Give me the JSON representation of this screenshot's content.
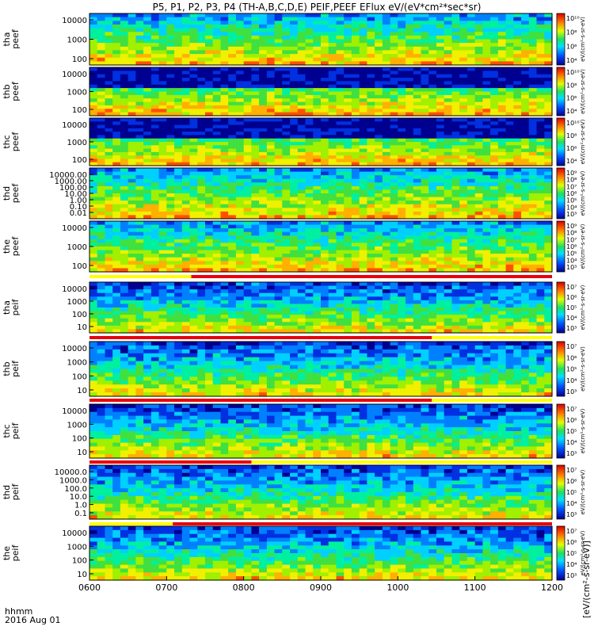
{
  "title": "P5, P1, P2, P3, P4 (TH-A,B,C,D,E) PEIF,PEEF EFlux eV/(eV*cm²*sec*sr)",
  "x_caption": [
    "hhmm",
    "2016 Aug 01"
  ],
  "colorbar_label": "[eV/(cm²-s-sr-eV)]",
  "colors": {
    "background": "#ffffff",
    "axis": "#000000",
    "flag_red": "#e8000b",
    "flag_yellow": "#ffff00",
    "trace": "#000000"
  },
  "chart_data": {
    "type": "heatmap",
    "x_ticks": [
      "0600",
      "0700",
      "0800",
      "0900",
      "1000",
      "1100",
      "1200"
    ],
    "x_range": [
      "06:00",
      "12:00"
    ],
    "colormap": "rainbow",
    "panels": [
      {
        "id": "tha-peef",
        "label": [
          "tha",
          "peef"
        ],
        "y_scale": "log",
        "y_ticks": [
          "10000",
          "1000",
          "100"
        ],
        "cbar_ticks": [
          "10¹⁰",
          "10⁸",
          "10⁶",
          "10⁴"
        ],
        "cbar_label": "eV/(cm²-s-sr-eV)"
      },
      {
        "id": "thb-peef",
        "label": [
          "thb",
          "peef"
        ],
        "y_scale": "log",
        "y_ticks": [
          "10000",
          "1000",
          "100"
        ],
        "cbar_ticks": [
          "10¹⁰",
          "10⁸",
          "10⁶",
          "10⁴"
        ],
        "cbar_label": "eV/(cm²-s-sr-eV)"
      },
      {
        "id": "thc-peef",
        "label": [
          "thc",
          "peef"
        ],
        "y_scale": "log",
        "y_ticks": [
          "10000",
          "1000",
          "100"
        ],
        "cbar_ticks": [
          "10¹⁰",
          "10⁸",
          "10⁶",
          "10⁴"
        ],
        "cbar_label": "eV/(cm²-s-sr-eV)"
      },
      {
        "id": "thd-peef",
        "label": [
          "thd",
          "peef"
        ],
        "y_scale": "log",
        "y_ticks": [
          "10000.00",
          "1000.00",
          "100.00",
          "10.00",
          "1.00",
          "0.10",
          "0.01"
        ],
        "cbar_ticks": [
          "10⁹",
          "10⁸",
          "10⁷",
          "10⁶",
          "10⁵",
          "10⁴",
          "10³"
        ],
        "cbar_label": "eV/(cm²-s-sr-eV)"
      },
      {
        "id": "the-peef",
        "label": [
          "the",
          "peef"
        ],
        "y_scale": "log",
        "y_ticks": [
          "10000",
          "1000",
          "100"
        ],
        "cbar_ticks": [
          "10⁹",
          "10⁸",
          "10⁷",
          "10⁶",
          "10⁵",
          "10⁴",
          "10³"
        ],
        "cbar_label": "eV/(cm²-s-sr-eV)"
      },
      {
        "id": "tha-peif",
        "label": [
          "tha",
          "peif"
        ],
        "y_scale": "log",
        "y_ticks": [
          "10000",
          "1000",
          "100",
          "10"
        ],
        "cbar_ticks": [
          "10⁷",
          "10⁶",
          "10⁵",
          "10⁴",
          "10³"
        ],
        "cbar_label": "eV/(cm²-s-sr-eV)"
      },
      {
        "id": "thb-peif",
        "label": [
          "thb",
          "peif"
        ],
        "y_scale": "log",
        "y_ticks": [
          "10000",
          "1000",
          "100",
          "10"
        ],
        "cbar_ticks": [
          "10⁷",
          "10⁶",
          "10⁵",
          "10⁴",
          "10³"
        ],
        "cbar_label": "eV/(cm²-s-sr-eV)"
      },
      {
        "id": "thc-peif",
        "label": [
          "thc",
          "peif"
        ],
        "y_scale": "log",
        "y_ticks": [
          "10000",
          "1000",
          "100",
          "10"
        ],
        "cbar_ticks": [
          "10⁷",
          "10⁶",
          "10⁵",
          "10⁴",
          "10³"
        ],
        "cbar_label": "eV/(cm²-s-sr-eV)"
      },
      {
        "id": "thd-peif",
        "label": [
          "thd",
          "peif"
        ],
        "y_scale": "log",
        "y_ticks": [
          "10000.0",
          "1000.0",
          "100.0",
          "10.0",
          "1.0",
          "0.1"
        ],
        "cbar_ticks": [
          "10⁷",
          "10⁶",
          "10⁵",
          "10⁴",
          "10³"
        ],
        "cbar_label": "eV/(cm²-s-sr-eV)"
      },
      {
        "id": "the-peif",
        "label": [
          "the",
          "peif"
        ],
        "y_scale": "log",
        "y_ticks": [
          "10000",
          "1000",
          "100",
          "10"
        ],
        "cbar_ticks": [
          "10⁷",
          "10⁶",
          "10⁵",
          "10⁴",
          "10³"
        ],
        "cbar_label": "eV/(cm²-s-sr-eV)"
      }
    ]
  }
}
